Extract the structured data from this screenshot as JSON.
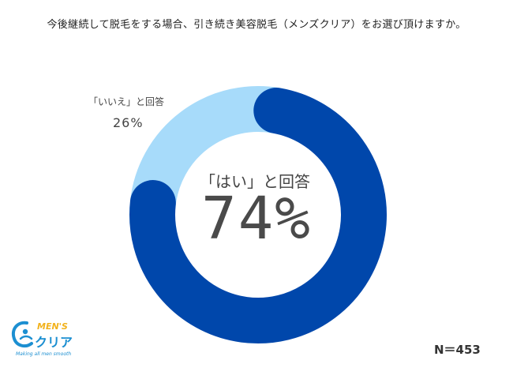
{
  "title": "今後継続して脱毛をする場合、引き続き美容脱毛（メンズクリア）をお選び頂けますか。",
  "sample_note": "N＝453",
  "logo": {
    "brand_top": "MEN'S",
    "brand_main": "クリア",
    "tagline": "Making all men smooth"
  },
  "colors": {
    "yes": "#0047ab",
    "no": "#a7dbfa"
  },
  "chart_data": {
    "type": "pie",
    "title": "今後継続して脱毛をする場合、引き続き美容脱毛（メンズクリア）をお選び頂けますか。",
    "labels": [
      "「はい」と回答",
      "「いいえ」と回答"
    ],
    "values": [
      74,
      26
    ],
    "value_labels": [
      "74%",
      "26%"
    ]
  }
}
